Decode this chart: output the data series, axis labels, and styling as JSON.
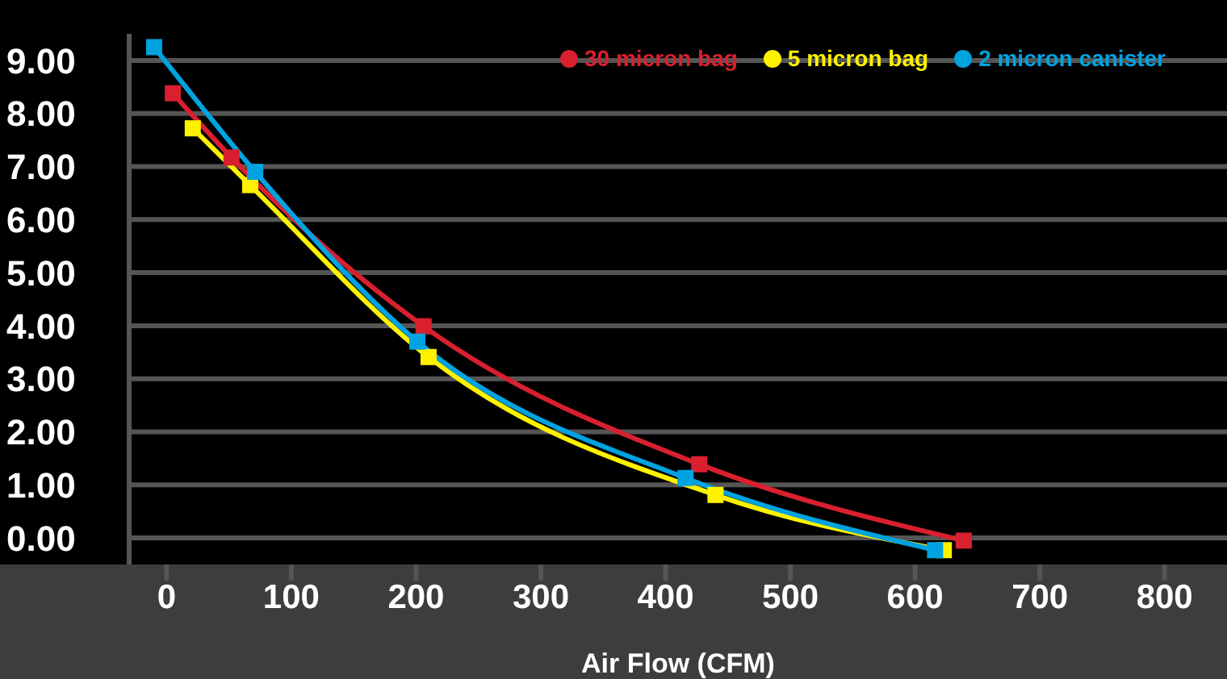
{
  "chart_data": {
    "type": "line",
    "xlabel": "Air Flow (CFM)",
    "xlim": [
      -30,
      850
    ],
    "xticks": [
      0,
      100,
      200,
      300,
      400,
      500,
      600,
      700,
      800
    ],
    "ylim": [
      -0.5,
      9.5
    ],
    "yticks": [
      {
        "value": 0,
        "label": "0.00"
      },
      {
        "value": 1,
        "label": "1.00"
      },
      {
        "value": 2,
        "label": "2.00"
      },
      {
        "value": 3,
        "label": "3.00"
      },
      {
        "value": 4,
        "label": "4.00"
      },
      {
        "value": 5,
        "label": "5.00"
      },
      {
        "value": 6,
        "label": "6.00"
      },
      {
        "value": 7,
        "label": "7.00"
      },
      {
        "value": 8,
        "label": "8.00"
      },
      {
        "value": 9,
        "label": "9.00"
      }
    ],
    "grid": "y",
    "legend": "top right",
    "marker": "square",
    "line_style": "solid",
    "series": [
      {
        "name": "30 micron bag",
        "color": "#d8202f",
        "x": [
          5,
          52,
          206,
          427,
          639
        ],
        "values": [
          8.38,
          7.17,
          3.99,
          1.39,
          -0.05
        ]
      },
      {
        "name": "5 micron bag",
        "color": "#fff200",
        "x": [
          21,
          67,
          210,
          440,
          623
        ],
        "values": [
          7.72,
          6.65,
          3.41,
          0.81,
          -0.23
        ]
      },
      {
        "name": "2 micron canister",
        "color": "#00a3e0",
        "x": [
          -10,
          71,
          201,
          416,
          616
        ],
        "values": [
          9.25,
          6.9,
          3.7,
          1.13,
          -0.23
        ]
      }
    ]
  }
}
